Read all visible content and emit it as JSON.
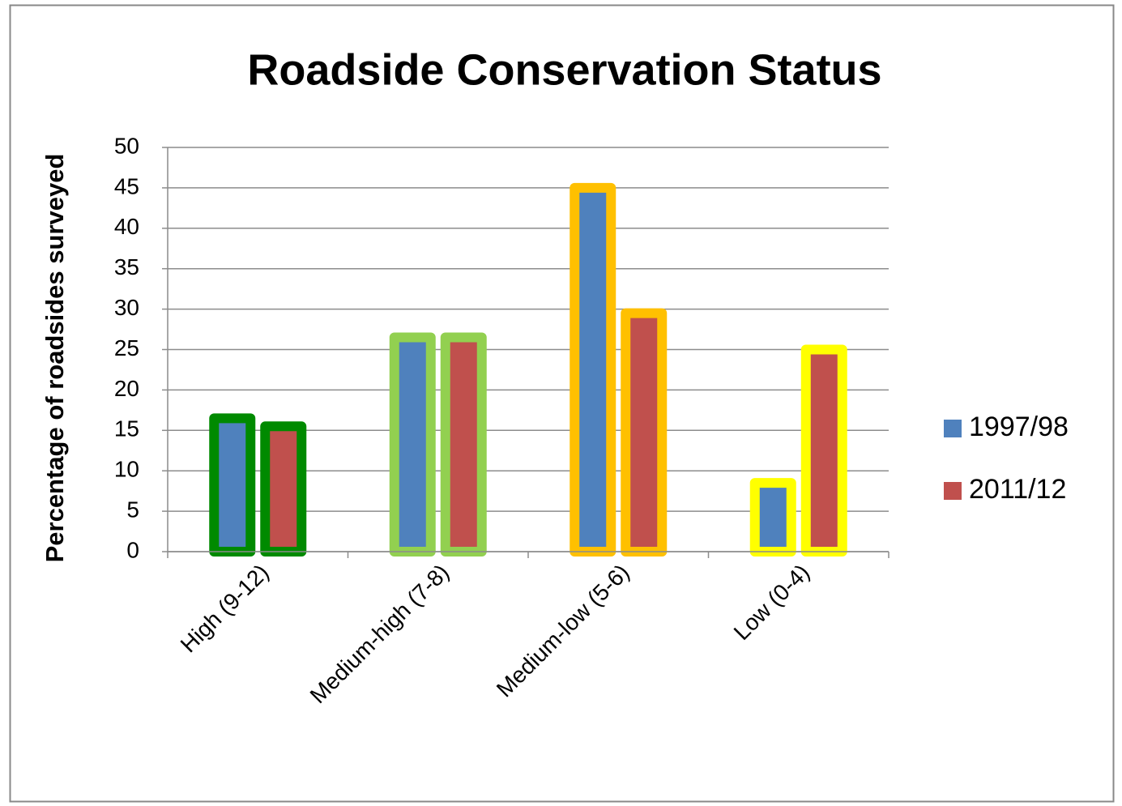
{
  "chart_data": {
    "type": "bar",
    "title": "Roadside Conservation Status",
    "y_label": "Percentage of roadsides surveyed",
    "categories": [
      "High (9-12)",
      "Medium-high (7-8)",
      "Medium-low (5-6)",
      "Low (0-4)"
    ],
    "series": [
      {
        "name": "1997/98",
        "color": "#4f81bd",
        "values": [
          16.5,
          26.5,
          45,
          8.5
        ]
      },
      {
        "name": "2011/12",
        "color": "#c0504d",
        "values": [
          15.5,
          26.5,
          29.5,
          25
        ]
      }
    ],
    "border_colors": [
      "#008a00",
      "#92d050",
      "#ffc000",
      "#ffff00"
    ],
    "ylim": [
      0,
      50
    ],
    "yticks": [
      0,
      5,
      10,
      15,
      20,
      25,
      30,
      35,
      40,
      45,
      50
    ],
    "grid": true,
    "legend": "right"
  }
}
